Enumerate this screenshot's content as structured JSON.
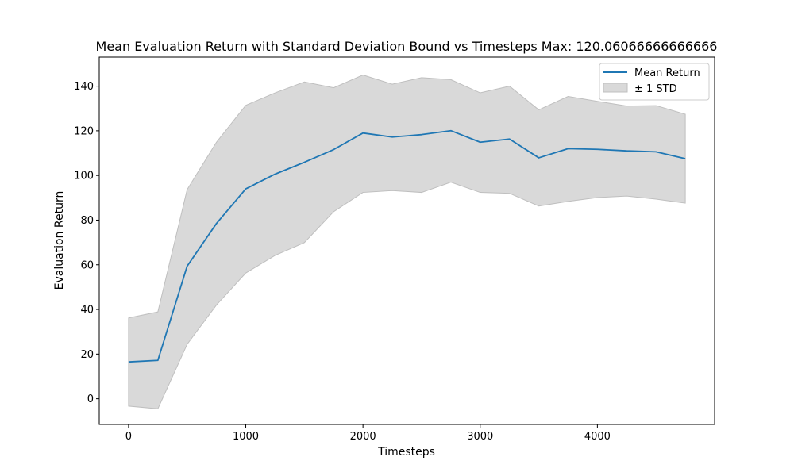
{
  "chart_data": {
    "type": "line",
    "title": "Mean Evaluation Return with Standard Deviation Bound vs Timesteps Max: 120.06066666666666",
    "xlabel": "Timesteps",
    "ylabel": "Evaluation Return",
    "xlim": [
      -250,
      5000
    ],
    "ylim": [
      -11.5,
      153
    ],
    "xticks": [
      0,
      1000,
      2000,
      3000,
      4000
    ],
    "yticks": [
      0,
      20,
      40,
      60,
      80,
      100,
      120,
      140
    ],
    "grid": false,
    "legend_position": "top-right",
    "x": [
      0,
      250,
      500,
      750,
      1000,
      1250,
      1500,
      1750,
      2000,
      2250,
      2500,
      2750,
      3000,
      3250,
      3500,
      3750,
      4000,
      4250,
      4500,
      4750
    ],
    "series": [
      {
        "name": "Mean Return",
        "type": "line",
        "color": "#1f77b4",
        "values": [
          16.5,
          17.2,
          59.4,
          78.5,
          94.0,
          100.6,
          105.9,
          111.6,
          119.0,
          117.2,
          118.3,
          120.06,
          114.9,
          116.3,
          107.9,
          112.0,
          111.7,
          111.0,
          110.6,
          107.5
        ]
      },
      {
        "name": "± 1 STD",
        "type": "band",
        "color": "#bfbfbf",
        "lower": [
          -3.3,
          -4.5,
          24.4,
          42.0,
          56.3,
          64.2,
          69.9,
          83.8,
          92.4,
          93.2,
          92.4,
          97.0,
          92.4,
          92.0,
          86.3,
          88.4,
          90.1,
          90.8,
          89.4,
          87.6
        ],
        "upper": [
          36.2,
          38.9,
          93.7,
          114.9,
          131.4,
          137.0,
          141.9,
          139.3,
          145.0,
          140.9,
          143.8,
          142.9,
          137.0,
          140.0,
          129.4,
          135.4,
          133.2,
          131.1,
          131.3,
          127.4
        ]
      }
    ]
  }
}
